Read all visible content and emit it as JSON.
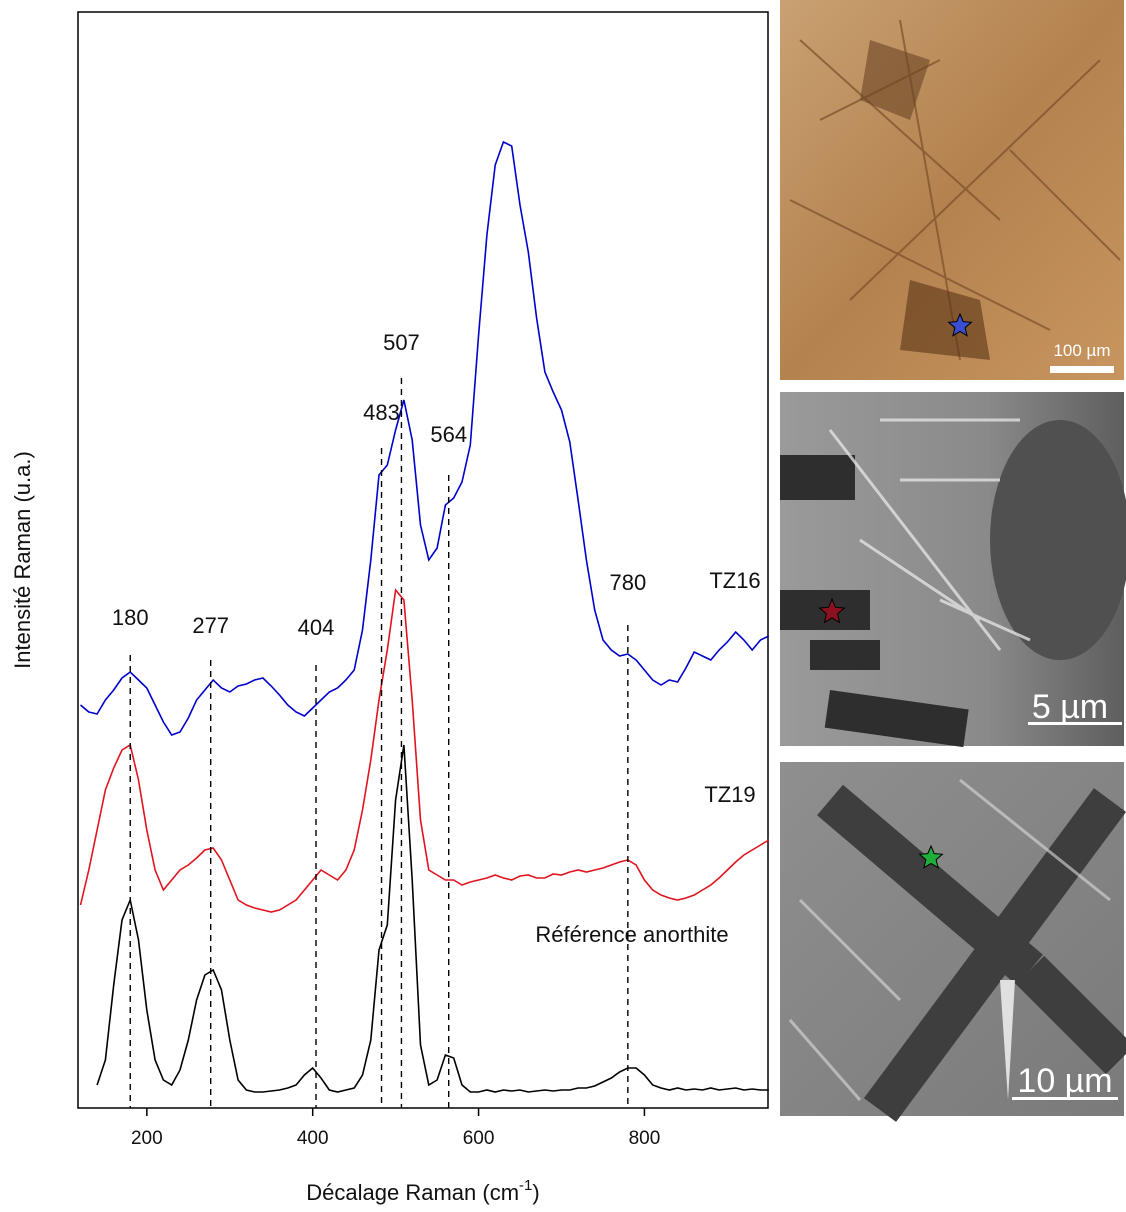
{
  "chart_data": {
    "type": "line",
    "x_label": {
      "text": "Décalage Raman (cm",
      "sup": "-1",
      "end": ")"
    },
    "y_label": "Intensité Raman (u.a.)",
    "xlim": [
      117,
      949
    ],
    "ylim": [
      0,
      1096
    ],
    "xticks": [
      200,
      400,
      600,
      800
    ],
    "x": [
      120,
      130,
      140,
      150,
      160,
      170,
      180,
      190,
      200,
      210,
      220,
      230,
      240,
      250,
      260,
      270,
      280,
      290,
      300,
      310,
      320,
      330,
      340,
      350,
      360,
      370,
      380,
      390,
      400,
      410,
      420,
      430,
      440,
      450,
      460,
      470,
      480,
      490,
      500,
      510,
      520,
      530,
      540,
      550,
      560,
      570,
      580,
      590,
      600,
      610,
      620,
      630,
      640,
      650,
      660,
      670,
      680,
      690,
      700,
      710,
      720,
      730,
      740,
      750,
      760,
      770,
      780,
      790,
      800,
      810,
      820,
      830,
      840,
      850,
      860,
      870,
      880,
      890,
      900,
      910,
      920,
      930,
      940,
      950
    ],
    "series": [
      {
        "name": "TZ16",
        "color": "#0000cc",
        "values": [
          403,
          396,
          394,
          408,
          418,
          430,
          436,
          428,
          420,
          403,
          386,
          373,
          376,
          390,
          408,
          418,
          428,
          420,
          416,
          422,
          424,
          428,
          430,
          422,
          413,
          403,
          396,
          392,
          400,
          408,
          416,
          420,
          428,
          438,
          478,
          548,
          633,
          643,
          678,
          708,
          668,
          583,
          548,
          560,
          603,
          610,
          626,
          663,
          773,
          873,
          943,
          966,
          962,
          903,
          856,
          790,
          736,
          716,
          698,
          666,
          608,
          548,
          498,
          468,
          458,
          452,
          454,
          448,
          438,
          428,
          423,
          428,
          426,
          440,
          456,
          452,
          448,
          458,
          466,
          476,
          468,
          458,
          468,
          472
        ]
      },
      {
        "name": "TZ19",
        "color": "#e0141e",
        "values": [
          203,
          238,
          278,
          318,
          340,
          358,
          363,
          328,
          278,
          238,
          218,
          228,
          238,
          243,
          250,
          258,
          260,
          248,
          228,
          208,
          203,
          200,
          198,
          196,
          198,
          203,
          208,
          218,
          228,
          238,
          233,
          228,
          238,
          258,
          298,
          348,
          408,
          458,
          518,
          508,
          408,
          288,
          238,
          233,
          228,
          228,
          223,
          226,
          228,
          230,
          233,
          230,
          228,
          232,
          233,
          230,
          230,
          234,
          233,
          236,
          238,
          236,
          238,
          240,
          243,
          246,
          248,
          243,
          228,
          218,
          213,
          210,
          208,
          210,
          213,
          218,
          223,
          230,
          238,
          246,
          253,
          258,
          263,
          268
        ]
      },
      {
        "name": "Référence anorthite",
        "color": "#000000",
        "values": [
          null,
          null,
          23,
          48,
          123,
          188,
          208,
          168,
          98,
          48,
          28,
          23,
          38,
          68,
          108,
          133,
          138,
          118,
          68,
          28,
          18,
          16,
          16,
          17,
          18,
          20,
          23,
          33,
          40,
          30,
          18,
          16,
          18,
          20,
          33,
          68,
          158,
          183,
          308,
          363,
          228,
          63,
          23,
          28,
          53,
          50,
          23,
          16,
          16,
          18,
          16,
          18,
          17,
          18,
          16,
          17,
          18,
          17,
          18,
          18,
          20,
          20,
          22,
          26,
          30,
          36,
          40,
          40,
          33,
          23,
          20,
          18,
          20,
          18,
          19,
          18,
          20,
          18,
          19,
          20,
          18,
          19,
          18,
          18
        ]
      }
    ],
    "peaks": [
      180,
      277,
      404,
      483,
      507,
      564,
      780
    ]
  },
  "images": [
    {
      "scale_label": "100 µm"
    },
    {
      "scale_label": "5 µm"
    },
    {
      "scale_label": "10 µm"
    }
  ]
}
